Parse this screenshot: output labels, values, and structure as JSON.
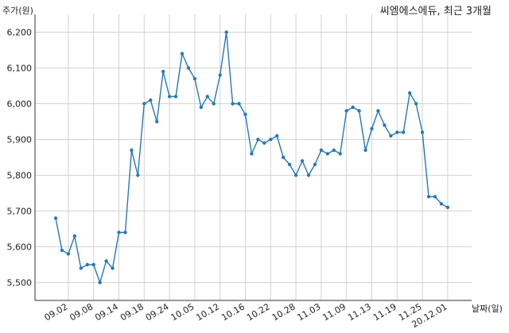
{
  "colors": {
    "line": "#2878b5",
    "grid": "#d3d3d3",
    "axis": "#333333",
    "text": "#222222"
  },
  "chart_data": {
    "type": "line",
    "title": "씨엠에스에듀, 최근 3개월",
    "xlabel": "날짜(일)",
    "ylabel": "주가(원)",
    "grid": true,
    "ylim": [
      5450,
      6250
    ],
    "yticks": [
      5500,
      5600,
      5700,
      5800,
      5900,
      6000,
      6100,
      6200
    ],
    "ytick_labels": [
      "5,500",
      "5,600",
      "5,700",
      "5,800",
      "5,900",
      "6,000",
      "6,100",
      "6,200"
    ],
    "xtick_labels": [
      "09.02",
      "09.08",
      "09.14",
      "09.18",
      "09.24",
      "10.05",
      "10.12",
      "10.16",
      "10.22",
      "10.28",
      "11.03",
      "11.09",
      "11.13",
      "11.19",
      "11.25",
      "20.12.01"
    ],
    "xtick_indices": [
      2,
      6,
      10,
      14,
      18,
      22,
      26,
      30,
      34,
      38,
      42,
      46,
      50,
      54,
      58,
      62
    ],
    "series": [
      {
        "values": [
          5680,
          5590,
          5580,
          5630,
          5540,
          5550,
          5550,
          5500,
          5560,
          5540,
          5640,
          5640,
          5870,
          5800,
          6000,
          6010,
          5950,
          6090,
          6020,
          6020,
          6140,
          6100,
          6070,
          5990,
          6020,
          6000,
          6080,
          6200,
          6000,
          6000,
          5970,
          5860,
          5900,
          5890,
          5900,
          5910,
          5850,
          5830,
          5800,
          5840,
          5800,
          5830,
          5870,
          5860,
          5870,
          5860,
          5980,
          5990,
          5980,
          5870,
          5930,
          5980,
          5940,
          5910,
          5920,
          5920,
          6030,
          6000,
          5920,
          5740,
          5740,
          5720,
          5710
        ]
      }
    ]
  }
}
